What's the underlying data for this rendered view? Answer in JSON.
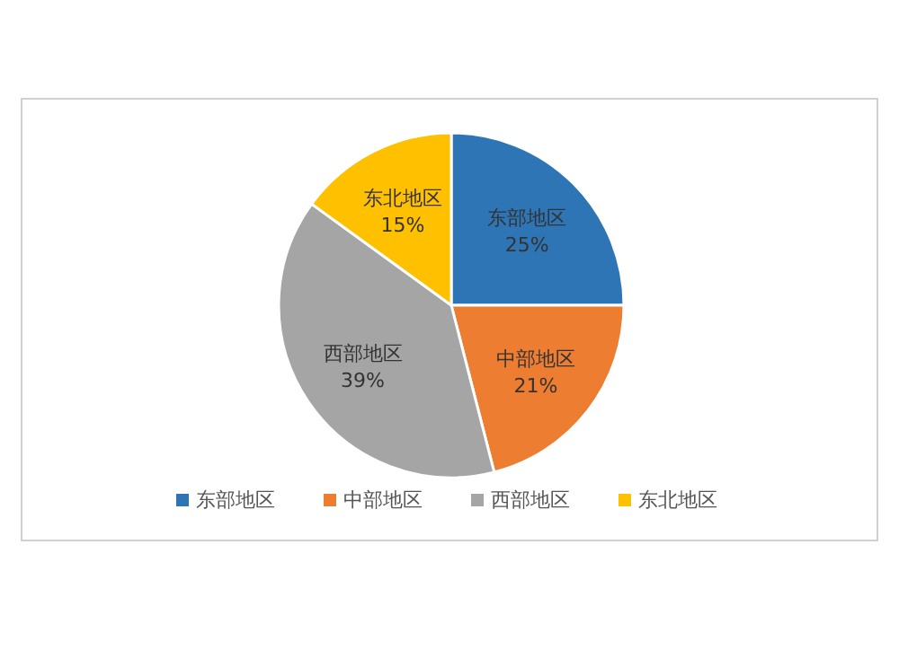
{
  "chart_data": {
    "type": "pie",
    "categories": [
      "东部地区",
      "中部地区",
      "西部地区",
      "东北地区"
    ],
    "values": [
      25,
      21,
      39,
      15
    ],
    "colors": [
      "#2e75b6",
      "#ed7d31",
      "#a5a5a5",
      "#ffc000"
    ],
    "value_labels": [
      "25%",
      "21%",
      "39%",
      "15%"
    ],
    "legend": "bottom"
  }
}
